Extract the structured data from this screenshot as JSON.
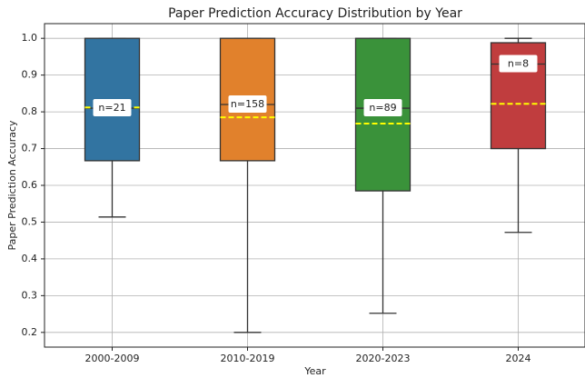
{
  "chart_data": {
    "type": "box",
    "title": "Paper Prediction Accuracy Distribution by Year",
    "x_label": "Year",
    "y_label": "Paper Prediction Accuracy",
    "categories": [
      "2000-2009",
      "2010-2019",
      "2020-2023",
      "2024"
    ],
    "boxes": [
      {
        "whislo": 0.514,
        "q1": 0.667,
        "med": 0.81,
        "q3": 1.0,
        "whishi": 1.0,
        "mean": 0.812,
        "color": "#3274a1",
        "label": "n=21"
      },
      {
        "whislo": 0.2,
        "q1": 0.667,
        "med": 0.82,
        "q3": 1.0,
        "whishi": 1.0,
        "mean": 0.785,
        "color": "#e1812c",
        "label": "n=158"
      },
      {
        "whislo": 0.252,
        "q1": 0.585,
        "med": 0.81,
        "q3": 1.0,
        "whishi": 1.0,
        "mean": 0.768,
        "color": "#3a923a",
        "label": "n=89"
      },
      {
        "whislo": 0.472,
        "q1": 0.7,
        "med": 0.93,
        "q3": 0.988,
        "whishi": 1.0,
        "mean": 0.822,
        "color": "#c03d3e",
        "label": "n=8"
      }
    ],
    "mean_color": "#ffff00",
    "ylim": [
      0.16,
      1.04
    ],
    "yticks": [
      0.2,
      0.3,
      0.4,
      0.5,
      0.6,
      0.7,
      0.8,
      0.9,
      {
        "value": 1,
        "label": "1.0"
      }
    ],
    "grid": true
  }
}
